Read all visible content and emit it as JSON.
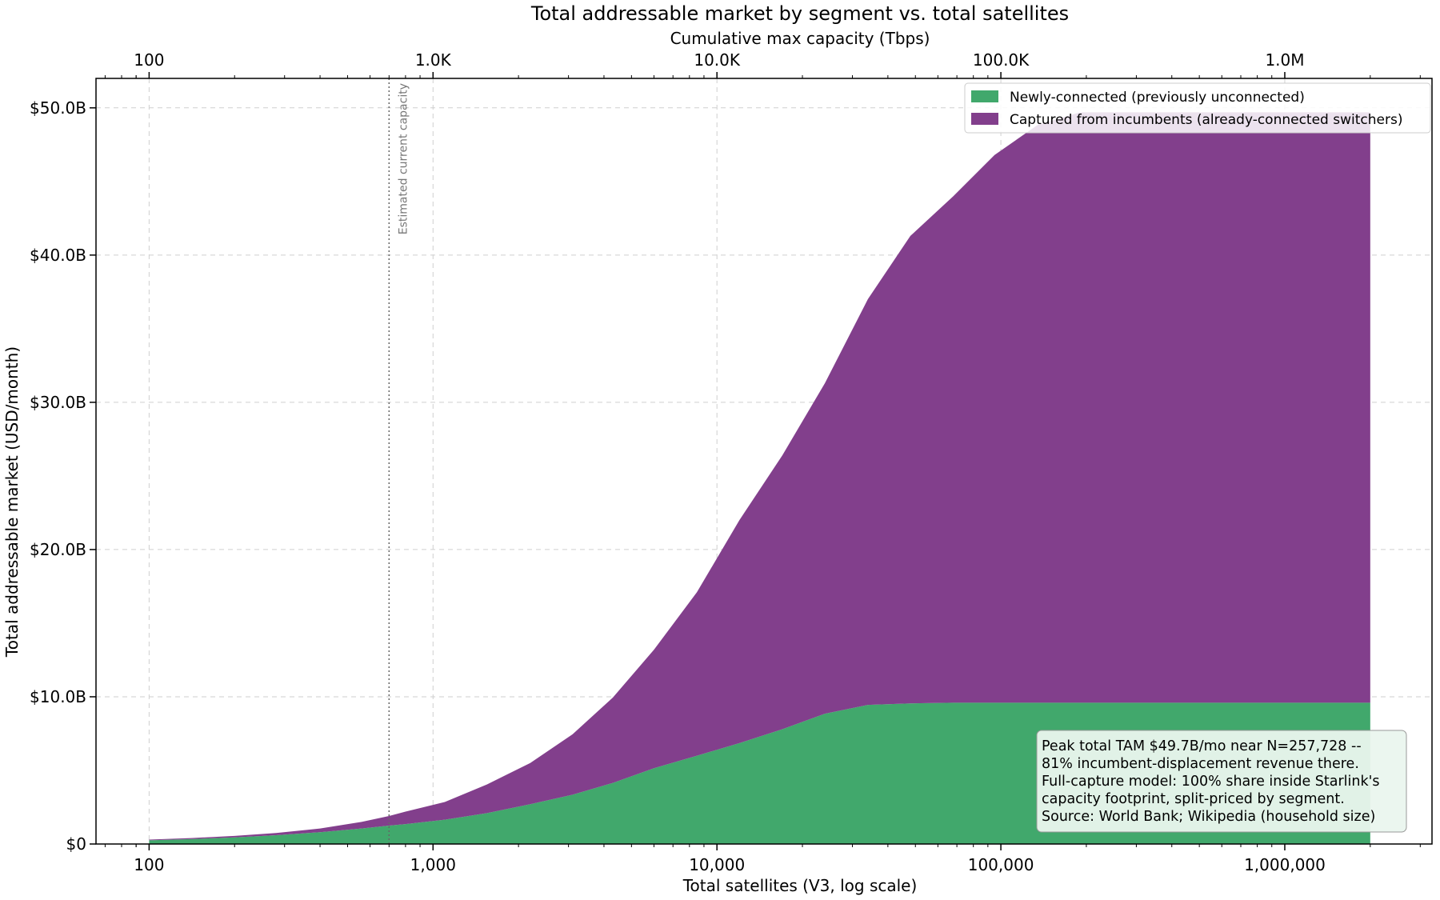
{
  "chart_data": {
    "type": "area",
    "stacked": true,
    "title": "Total addressable market by segment vs. total satellites",
    "xlabel": "Total satellites (V3, log scale)",
    "ylabel": "Total addressable market (USD/month)",
    "x_scale": "log",
    "xlim": [
      65,
      3300000
    ],
    "ylim": [
      0,
      52000000000
    ],
    "grid": true,
    "legend_position": "top-right",
    "x_ticks": [
      {
        "value": 100,
        "label": "100"
      },
      {
        "value": 1000,
        "label": "1,000"
      },
      {
        "value": 10000,
        "label": "10,000"
      },
      {
        "value": 100000,
        "label": "100,000"
      },
      {
        "value": 1000000,
        "label": "1,000,000"
      }
    ],
    "y_ticks": [
      {
        "value": 0,
        "label": "$0"
      },
      {
        "value": 10000000000,
        "label": "$10.0B"
      },
      {
        "value": 20000000000,
        "label": "$20.0B"
      },
      {
        "value": 30000000000,
        "label": "$30.0B"
      },
      {
        "value": 40000000000,
        "label": "$40.0B"
      },
      {
        "value": 50000000000,
        "label": "$50.0B"
      }
    ],
    "top_axis": {
      "label": "Cumulative max capacity (Tbps)",
      "ticks": [
        {
          "value": 100,
          "label": "100"
        },
        {
          "value": 1000,
          "label": "1.0K"
        },
        {
          "value": 10000,
          "label": "10.0K"
        },
        {
          "value": 100000,
          "label": "100.0K"
        },
        {
          "value": 1000000,
          "label": "1.0M"
        }
      ]
    },
    "x": [
      100,
      140,
      200,
      280,
      400,
      560,
      700,
      800,
      1100,
      1550,
      2200,
      3100,
      4300,
      6000,
      8500,
      12000,
      17000,
      24000,
      34000,
      48000,
      68000,
      95000,
      135000,
      190000,
      260000,
      370000,
      520000,
      740000,
      1050000,
      1480000,
      2000000
    ],
    "series": [
      {
        "name": "Newly-connected (previously unconnected)",
        "color": "#41a86c",
        "values": [
          0.25,
          0.33,
          0.45,
          0.6,
          0.8,
          1.05,
          1.25,
          1.35,
          1.65,
          2.1,
          2.7,
          3.35,
          4.15,
          5.15,
          6.0,
          6.85,
          7.8,
          8.85,
          9.45,
          9.55,
          9.6,
          9.6,
          9.6,
          9.6,
          9.6,
          9.6,
          9.6,
          9.6,
          9.6,
          9.6,
          9.6
        ]
      },
      {
        "name": "Captured from incumbents (already-connected switchers)",
        "color": "#823f8c",
        "values": [
          0.05,
          0.07,
          0.1,
          0.15,
          0.25,
          0.45,
          0.65,
          0.85,
          1.2,
          1.95,
          2.8,
          4.1,
          5.8,
          8.05,
          11.1,
          15.15,
          18.6,
          22.45,
          27.55,
          31.75,
          34.4,
          37.2,
          39.25,
          40.1,
          40.1,
          40.1,
          40.1,
          40.1,
          40.1,
          40.1,
          40.1
        ]
      }
    ],
    "values_unit": "USD billions per month",
    "reference_line": {
      "x": 700,
      "label": "Estimated current capacity"
    },
    "annotation": [
      "Peak total TAM $49.7B/mo near N=257,728 --",
      "81% incumbent-displacement revenue there.",
      "Full-capture model: 100% share inside Starlink's",
      "capacity footprint, split-priced by segment.",
      "Source: World Bank; Wikipedia (household size)"
    ]
  }
}
